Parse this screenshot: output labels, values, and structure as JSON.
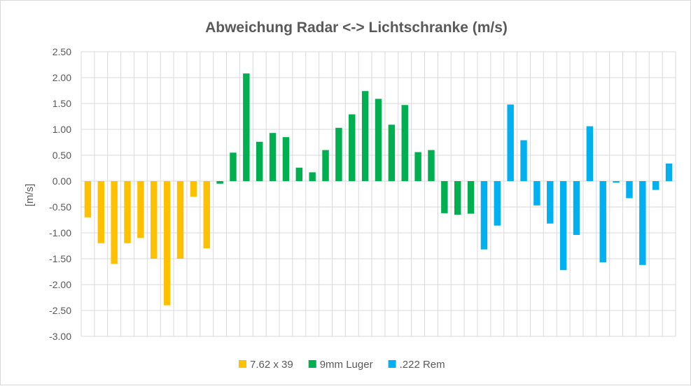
{
  "chart_data": {
    "type": "bar",
    "title": "Abweichung Radar <-> Lichtschranke (m/s)",
    "xlabel": "",
    "ylabel": "[m/s]",
    "ylim": [
      -3.0,
      2.5
    ],
    "ytick_step": 0.5,
    "ytick_labels": [
      "2.50",
      "2.00",
      "1.50",
      "1.00",
      "0.50",
      "0.00",
      "-0.50",
      "-1.00",
      "-1.50",
      "-2.00",
      "-2.50",
      "-3.00"
    ],
    "grid": true,
    "legend_position": "bottom",
    "series": [
      {
        "name": "7.62 x 39",
        "color": "#ffc000",
        "values": [
          -0.7,
          -1.2,
          -1.6,
          -1.2,
          -1.1,
          -1.5,
          -2.4,
          -1.5,
          -0.3,
          -1.3
        ]
      },
      {
        "name": "9mm Luger",
        "color": "#00b050",
        "values": [
          -0.05,
          0.55,
          2.08,
          0.76,
          0.93,
          0.85,
          0.26,
          0.17,
          0.6,
          1.03,
          1.29,
          1.74,
          1.59,
          1.09,
          1.47,
          0.56,
          0.6,
          -0.62,
          -0.65,
          -0.63
        ]
      },
      {
        "name": ".222 Rem",
        "color": "#00b0f0",
        "values": [
          -1.32,
          -0.86,
          1.48,
          0.79,
          -0.47,
          -0.82,
          -1.72,
          -1.04,
          1.06,
          -1.57,
          -0.03,
          -0.33,
          -1.62,
          -0.17,
          0.34
        ]
      }
    ]
  }
}
